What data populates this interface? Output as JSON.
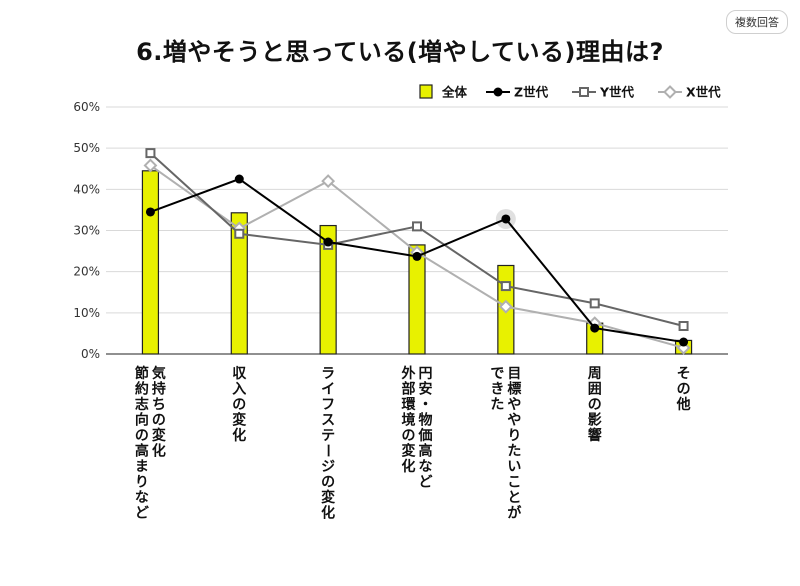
{
  "badge": "複数回答",
  "chart_data": {
    "type": "bar",
    "title": "6.増やそうと思っている(増やしている)理由は?",
    "categories": [
      [
        "気持ちの変化",
        "節約志向の高まりなど"
      ],
      [
        "収入の変化"
      ],
      [
        "ライフステージの変化"
      ],
      [
        "円安・物価高など",
        "外部環境の変化"
      ],
      [
        "目標ややりたいことが",
        "できた"
      ],
      [
        "周囲の影響"
      ],
      [
        "その他"
      ]
    ],
    "ylim": [
      0,
      60
    ],
    "yticks": [
      "0%",
      "10%",
      "20%",
      "30%",
      "40%",
      "50%",
      "60%"
    ],
    "legend_position": "top-right",
    "grid": true,
    "series": [
      {
        "name": "全体",
        "kind": "bar",
        "color": "#e8f100",
        "values": [
          44.5,
          34.3,
          31.2,
          26.5,
          21.5,
          7.5,
          3.3
        ]
      },
      {
        "name": "Z世代",
        "kind": "line",
        "color": "#000000",
        "marker": "circle",
        "values": [
          34.5,
          42.5,
          27.2,
          23.7,
          32.8,
          6.3,
          2.9
        ]
      },
      {
        "name": "Y世代",
        "kind": "line",
        "color": "#666666",
        "marker": "square",
        "values": [
          48.8,
          29.2,
          26.5,
          31.0,
          16.5,
          12.3,
          6.8
        ]
      },
      {
        "name": "X世代",
        "kind": "line",
        "color": "#b0b0b0",
        "marker": "diamond",
        "values": [
          45.8,
          30.5,
          42.0,
          24.7,
          11.5,
          7.5,
          1.5
        ]
      }
    ]
  }
}
